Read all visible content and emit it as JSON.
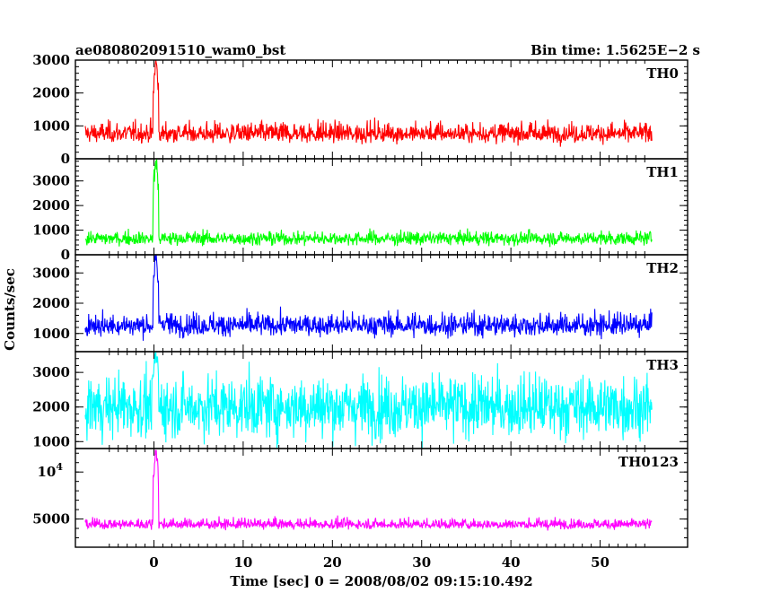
{
  "header": {
    "title": "ae080802091510_wam0_bst",
    "bin_time": "Bin time: 1.5625E−2 s"
  },
  "axes": {
    "ylabel": "Counts/sec",
    "xlabel": "Time [sec] 0 = 2008/08/02 09:15:10.492"
  },
  "chart_data": {
    "type": "line",
    "title": "ae080802091510_wam0_bst",
    "xlabel": "Time [sec] 0 = 2008/08/02 09:15:10.492",
    "ylabel": "Counts/sec",
    "xlim": [
      -8.8,
      59.8
    ],
    "x_ticks": [
      0,
      10,
      20,
      30,
      40,
      50
    ],
    "x_tick_labels": [
      "0",
      "10",
      "20",
      "30",
      "40",
      "50"
    ],
    "x_range": [
      -7.7,
      55.8
    ],
    "panels": [
      {
        "name": "TH0",
        "color": "#ff0000",
        "ylim": [
          0,
          3000
        ],
        "y_ticks": [
          0,
          1000,
          2000,
          3000
        ],
        "y_tick_labels": [
          "0",
          "1000",
          "2000",
          "3000"
        ],
        "baseline": 750,
        "noise": 260,
        "noise_low": 170,
        "spike_max": 3000,
        "notes": "noisy light curve ~200-1800 counts/sec, burst spike near t=0 exceeding 3000"
      },
      {
        "name": "TH1",
        "color": "#00ff00",
        "ylim": [
          0,
          3900
        ],
        "y_ticks": [
          0,
          1000,
          2000,
          3000
        ],
        "y_tick_labels": [
          "0",
          "1000",
          "2000",
          "3000"
        ],
        "baseline": 650,
        "noise": 220,
        "noise_low": 170,
        "spike_max": 3900,
        "notes": "noisy ~300-1500 counts/sec, spike near t=0 exceeding 3900"
      },
      {
        "name": "TH2",
        "color": "#0000ff",
        "ylim": [
          400,
          3600
        ],
        "y_ticks": [
          1000,
          2000,
          3000
        ],
        "y_tick_labels": [
          "1000",
          "2000",
          "3000"
        ],
        "baseline": 1250,
        "noise": 300,
        "noise_low": 220,
        "spike_max": 3600,
        "notes": "noisy ~800-2500 counts/sec, spike near t=0 to ~3600"
      },
      {
        "name": "TH3",
        "color": "#00ffff",
        "ylim": [
          800,
          3600
        ],
        "y_ticks": [
          1000,
          2000,
          3000
        ],
        "y_tick_labels": [
          "1000",
          "2000",
          "3000"
        ],
        "baseline": 2000,
        "noise": 650,
        "noise_low": 620,
        "spike_max": 3600,
        "notes": "high-variance noise ~900-3400 counts/sec"
      },
      {
        "name": "TH0123",
        "color": "#ff00ff",
        "ylim": [
          2000,
          12500
        ],
        "y_ticks": [
          5000,
          10000
        ],
        "y_tick_labels": [
          "5000",
          "10^4"
        ],
        "baseline": 4400,
        "noise": 480,
        "noise_low": 300,
        "spike_max": 12500,
        "notes": "sum of all channels ~3500-6500 counts/sec, spike near t=0 above 12000"
      }
    ]
  }
}
